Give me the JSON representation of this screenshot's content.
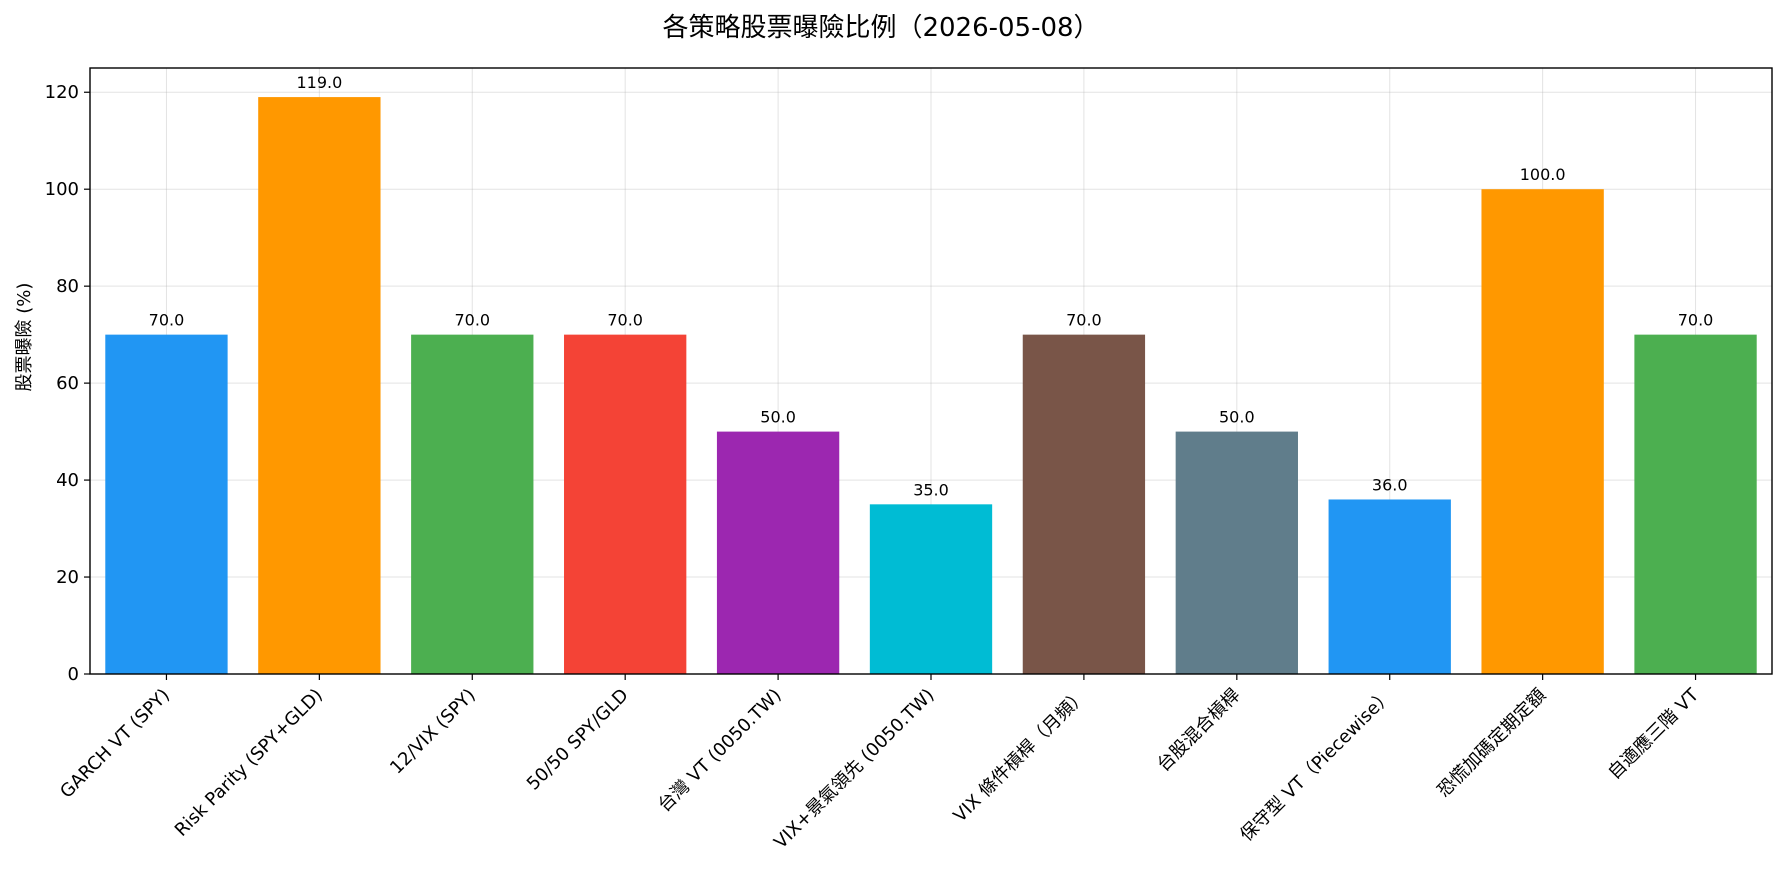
{
  "chart_data": {
    "type": "bar",
    "title": "各策略股票曝險比例（2026-05-08）",
    "xlabel": "",
    "ylabel": "股票曝險 (%)",
    "ylim": [
      0,
      125
    ],
    "yticks": [
      0,
      20,
      40,
      60,
      80,
      100,
      120
    ],
    "grid": true,
    "categories": [
      "GARCH VT (SPY)",
      "Risk Parity (SPY+GLD)",
      "12/VIX (SPY)",
      "50/50 SPY/GLD",
      "台灣 VT (0050.TW)",
      "VIX+景氣領先 (0050.TW)",
      "VIX 條件槓桿（月頻）",
      "台股混合槓桿",
      "保守型 VT（Piecewise）",
      "恐慌加碼定期定額",
      "自適應三階 VT"
    ],
    "values": [
      70.0,
      119.0,
      70.0,
      70.0,
      50.0,
      35.0,
      70.0,
      50.0,
      36.0,
      100.0,
      70.0
    ],
    "value_labels": [
      "70.0",
      "119.0",
      "70.0",
      "70.0",
      "50.0",
      "35.0",
      "70.0",
      "50.0",
      "36.0",
      "100.0",
      "70.0"
    ],
    "colors": [
      "#2196F3",
      "#FF9800",
      "#4CAF50",
      "#F44336",
      "#9C27B0",
      "#00BCD4",
      "#795548",
      "#607D8B",
      "#2196F3",
      "#FF9800",
      "#4CAF50"
    ]
  }
}
